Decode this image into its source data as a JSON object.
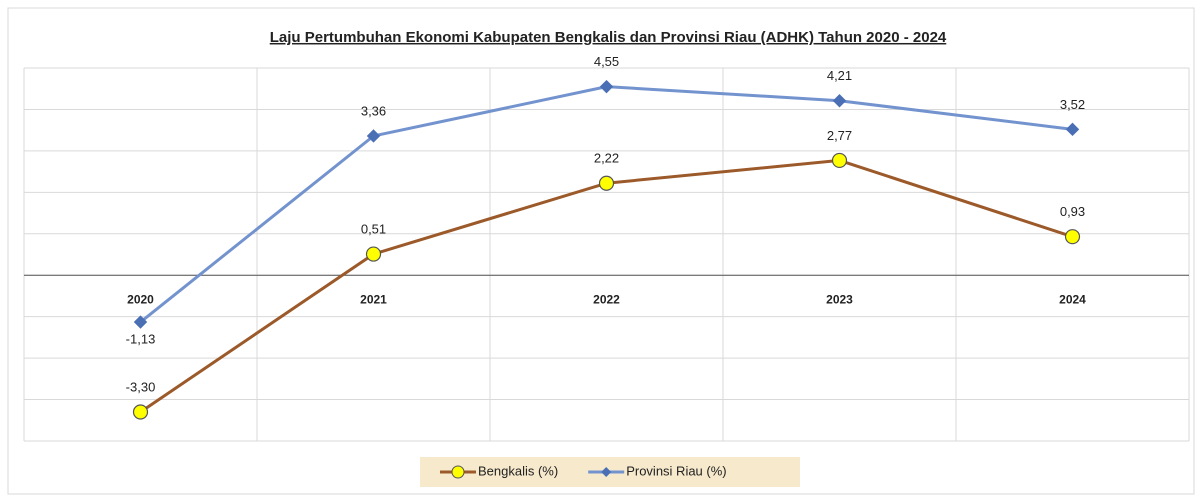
{
  "chart_data": {
    "type": "line",
    "title": "Laju Pertumbuhan Ekonomi Kabupaten Bengkalis dan Provinsi Riau (ADHK) Tahun 2020 - 2024",
    "categories": [
      "2020",
      "2021",
      "2022",
      "2023",
      "2024"
    ],
    "series": [
      {
        "name": "Bengkalis (%)",
        "color": "#9c5a2a",
        "marker_color": "#ffff00",
        "marker": "circle",
        "values": [
          -3.3,
          0.51,
          2.22,
          2.77,
          0.93
        ],
        "value_labels": [
          "-3,30",
          "0,51",
          "2,22",
          "2,77",
          "0,93"
        ]
      },
      {
        "name": "Provinsi Riau (%)",
        "color": "#7393cf",
        "marker_color": "#4a6fb5",
        "marker": "diamond",
        "values": [
          -1.13,
          3.36,
          4.55,
          4.21,
          3.52
        ],
        "value_labels": [
          "-1,13",
          "3,36",
          "4,55",
          "4,21",
          "3,52"
        ]
      }
    ],
    "ylim": [
      -4,
      5
    ],
    "yticks": [
      -4,
      -3,
      -2,
      -1,
      0,
      1,
      2,
      3,
      4,
      5
    ],
    "grid": true,
    "legend": "bottom"
  }
}
